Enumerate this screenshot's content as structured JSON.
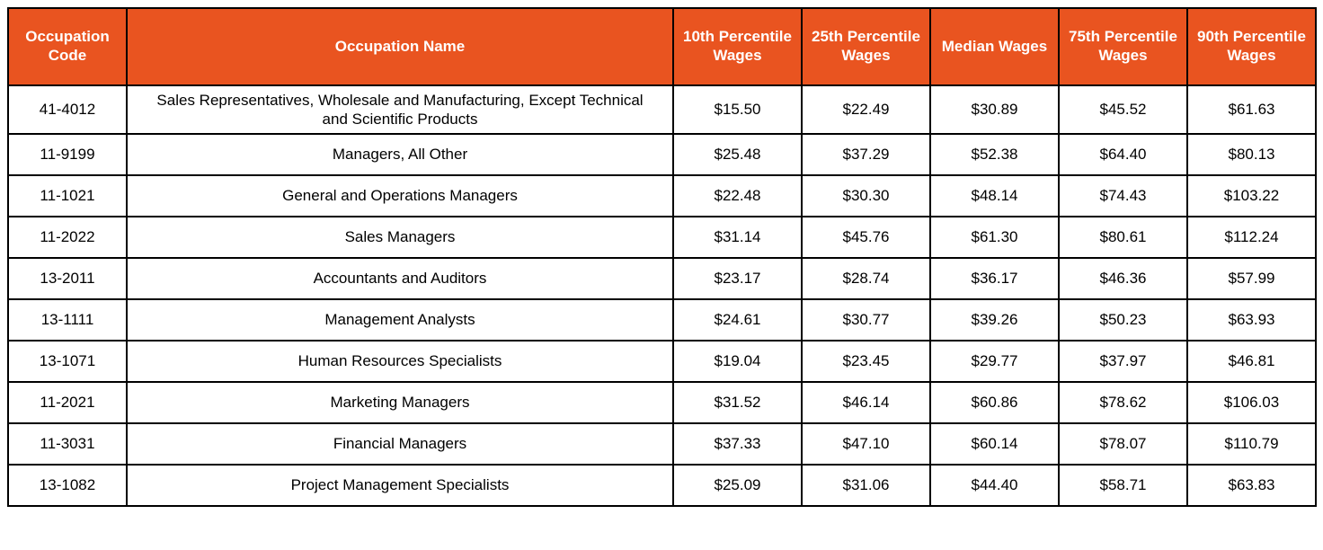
{
  "page": {
    "background": "#FFFFFF"
  },
  "chart_data": {
    "type": "table",
    "title": "",
    "columns": [
      "Occupation Code",
      "Occupation Name",
      "10th Percentile Wages",
      "25th Percentile Wages",
      "Median Wages",
      "75th Percentile Wages",
      "90th Percentile Wages"
    ],
    "rows": [
      [
        "41-4012",
        "Sales Representatives, Wholesale and Manufacturing, Except Technical and Scientific Products",
        "$15.50",
        "$22.49",
        "$30.89",
        "$45.52",
        "$61.63"
      ],
      [
        "11-9199",
        "Managers, All Other",
        "$25.48",
        "$37.29",
        "$52.38",
        "$64.40",
        "$80.13"
      ],
      [
        "11-1021",
        "General and Operations Managers",
        "$22.48",
        "$30.30",
        "$48.14",
        "$74.43",
        "$103.22"
      ],
      [
        "11-2022",
        "Sales Managers",
        "$31.14",
        "$45.76",
        "$61.30",
        "$80.61",
        "$112.24"
      ],
      [
        "13-2011",
        "Accountants and Auditors",
        "$23.17",
        "$28.74",
        "$36.17",
        "$46.36",
        "$57.99"
      ],
      [
        "13-1111",
        "Management Analysts",
        "$24.61",
        "$30.77",
        "$39.26",
        "$50.23",
        "$63.93"
      ],
      [
        "13-1071",
        "Human Resources Specialists",
        "$19.04",
        "$23.45",
        "$29.77",
        "$37.97",
        "$46.81"
      ],
      [
        "11-2021",
        "Marketing Managers",
        "$31.52",
        "$46.14",
        "$60.86",
        "$78.62",
        "$106.03"
      ],
      [
        "11-3031",
        "Financial Managers",
        "$37.33",
        "$47.10",
        "$60.14",
        "$78.07",
        "$110.79"
      ],
      [
        "13-1082",
        "Project Management Specialists",
        "$25.09",
        "$31.06",
        "$44.40",
        "$58.71",
        "$63.83"
      ]
    ],
    "layout": {
      "grid": true,
      "border_color": "#000000",
      "header_bg": "#E95420",
      "header_text_color": "#FFFFFF",
      "body_text_color": "#000000"
    }
  }
}
